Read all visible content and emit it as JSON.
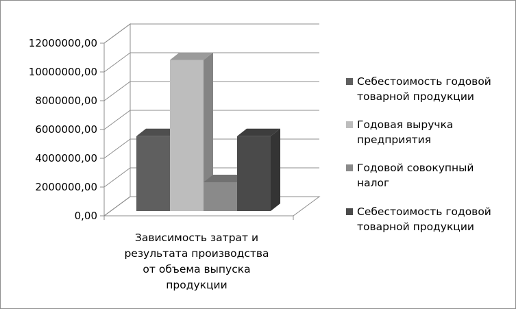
{
  "chart_data": {
    "type": "bar",
    "variant": "3d-clustered-column",
    "categories": [
      "Зависимость затрат и результата производства от объема выпуска продукции"
    ],
    "series": [
      {
        "name": "Себестоимость годовой товарной продукции",
        "values": [
          5200000
        ],
        "color": "#5f5f5f"
      },
      {
        "name": "Годовая выручка предприятия",
        "values": [
          10500000
        ],
        "color": "#bdbdbd"
      },
      {
        "name": "Годовой совокупный налог",
        "values": [
          2000000
        ],
        "color": "#8a8a8a"
      },
      {
        "name": "Себестоимость годовой товарной продукции",
        "values": [
          5200000
        ],
        "color": "#4a4a4a"
      }
    ],
    "ylim": [
      0,
      12000000
    ],
    "yticks": [
      0,
      2000000,
      4000000,
      6000000,
      8000000,
      10000000,
      12000000
    ],
    "ytick_labels": [
      "0,00",
      "2000000,00",
      "4000000,00",
      "6000000,00",
      "8000000,00",
      "10000000,00",
      "12000000,00"
    ],
    "grid": true,
    "legend_position": "right"
  }
}
